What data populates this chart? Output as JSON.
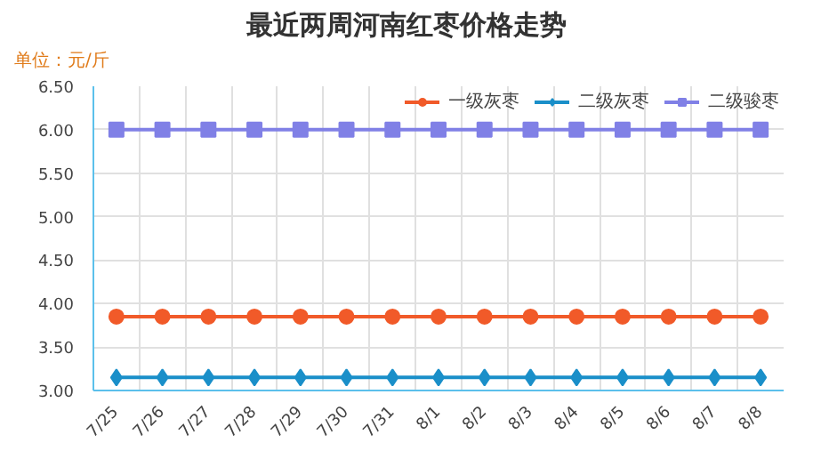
{
  "chart_data": {
    "type": "line",
    "title": "最近两周河南红枣价格走势",
    "ylabel": "单位：元/斤",
    "categories": [
      "7/25",
      "7/26",
      "7/27",
      "7/28",
      "7/29",
      "7/30",
      "7/31",
      "8/1",
      "8/2",
      "8/3",
      "8/4",
      "8/5",
      "8/6",
      "8/7",
      "8/8"
    ],
    "series": [
      {
        "name": "一级灰枣",
        "color": "#f15a29",
        "marker": "circle",
        "values": [
          3.85,
          3.85,
          3.85,
          3.85,
          3.85,
          3.85,
          3.85,
          3.85,
          3.85,
          3.85,
          3.85,
          3.85,
          3.85,
          3.85,
          3.85
        ]
      },
      {
        "name": "二级灰枣",
        "color": "#1a8fc9",
        "marker": "diamond",
        "values": [
          3.15,
          3.15,
          3.15,
          3.15,
          3.15,
          3.15,
          3.15,
          3.15,
          3.15,
          3.15,
          3.15,
          3.15,
          3.15,
          3.15,
          3.15
        ]
      },
      {
        "name": "二级骏枣",
        "color": "#8080e6",
        "marker": "square",
        "values": [
          6.0,
          6.0,
          6.0,
          6.0,
          6.0,
          6.0,
          6.0,
          6.0,
          6.0,
          6.0,
          6.0,
          6.0,
          6.0,
          6.0,
          6.0
        ]
      }
    ],
    "ylim": [
      3.0,
      6.5
    ],
    "yticks": [
      {
        "value": 3.0,
        "label": "3.00"
      },
      {
        "value": 3.5,
        "label": "3.50"
      },
      {
        "value": 4.0,
        "label": "4.00"
      },
      {
        "value": 4.5,
        "label": "4.50"
      },
      {
        "value": 5.0,
        "label": "5.00"
      },
      {
        "value": 5.5,
        "label": "5.50"
      },
      {
        "value": 6.0,
        "label": "6.00"
      },
      {
        "value": 6.5,
        "label": "6.50"
      }
    ],
    "grid": true,
    "legend": "top right",
    "line_style": "solid"
  }
}
